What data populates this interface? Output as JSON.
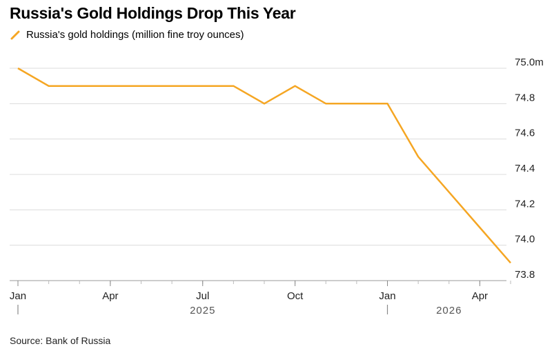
{
  "title": "Russia's Gold Holdings Drop This Year",
  "source": "Source: Bank of Russia",
  "colors": {
    "series": "#f5a623",
    "grid": "#dcdcdc",
    "axis": "#999999"
  },
  "chart_data": {
    "type": "line",
    "series": [
      {
        "name": "Russia's gold holdings (million fine troy ounces)",
        "x": [
          "2025-01",
          "2025-02",
          "2025-03",
          "2025-04",
          "2025-05",
          "2025-06",
          "2025-07",
          "2025-08",
          "2025-09",
          "2025-10",
          "2025-11",
          "2025-12",
          "2026-01",
          "2026-02",
          "2026-03",
          "2026-04",
          "2026-05"
        ],
        "values": [
          75.0,
          74.9,
          74.9,
          74.9,
          74.9,
          74.9,
          74.9,
          74.9,
          74.8,
          74.9,
          74.8,
          74.8,
          74.8,
          74.5,
          74.3,
          74.1,
          73.9
        ]
      }
    ],
    "ylim": [
      73.8,
      75.0
    ],
    "yticks": [
      {
        "value": 75.0,
        "label": "75.0m"
      },
      {
        "value": 74.8,
        "label": "74.8"
      },
      {
        "value": 74.6,
        "label": "74.6"
      },
      {
        "value": 74.4,
        "label": "74.4"
      },
      {
        "value": 74.2,
        "label": "74.2"
      },
      {
        "value": 74.0,
        "label": "74.0"
      },
      {
        "value": 73.8,
        "label": "73.8"
      }
    ],
    "xticks": [
      {
        "x": "2025-01",
        "label": "Jan"
      },
      {
        "x": "2025-04",
        "label": "Apr"
      },
      {
        "x": "2025-07",
        "label": "Jul"
      },
      {
        "x": "2025-10",
        "label": "Oct"
      },
      {
        "x": "2026-01",
        "label": "Jan"
      },
      {
        "x": "2026-04",
        "label": "Apr"
      }
    ],
    "years": [
      {
        "x": "2025-07",
        "label": "2025"
      },
      {
        "x": "2026-03",
        "label": "2026"
      }
    ],
    "year_boundaries": [
      "2025-01",
      "2026-01"
    ],
    "grid": true,
    "legend_position": "top-left"
  }
}
